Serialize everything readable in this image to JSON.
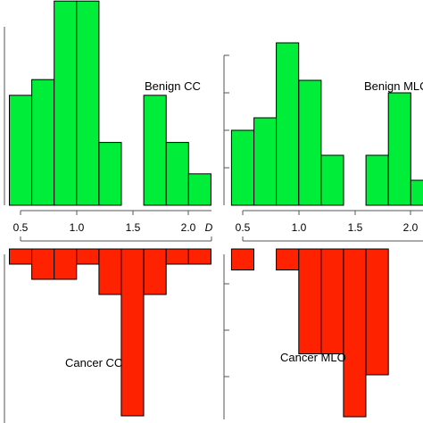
{
  "chart_data": {
    "type": "bar",
    "x_tick_labels": [
      "0.5",
      "1.0",
      "1.5",
      "2.0"
    ],
    "x_axis_symbol": "D",
    "panels": [
      {
        "name": "Benign CC",
        "color": "#00ee3a",
        "direction": "up",
        "bin_start": 0.4,
        "bin_width": 0.2,
        "values": [
          7,
          8,
          13,
          13,
          4,
          0,
          7,
          4,
          2
        ]
      },
      {
        "name": "Benign MLC",
        "color": "#00ee3a",
        "direction": "up",
        "bin_start": 0.4,
        "bin_width": 0.2,
        "values": [
          6,
          7,
          13,
          10,
          4,
          0,
          4,
          9,
          2
        ]
      },
      {
        "name": "Cancer CC",
        "color": "#ff2200",
        "direction": "down",
        "bin_start": 0.4,
        "bin_width": 0.2,
        "values": [
          1,
          2,
          2,
          1,
          3,
          11,
          3,
          1,
          1
        ]
      },
      {
        "name": "Cancer MLO",
        "color": "#ff2200",
        "direction": "down",
        "bin_start": 0.4,
        "bin_width": 0.2,
        "values": [
          1,
          0,
          1,
          5,
          5,
          8,
          6,
          0,
          0
        ]
      }
    ]
  }
}
